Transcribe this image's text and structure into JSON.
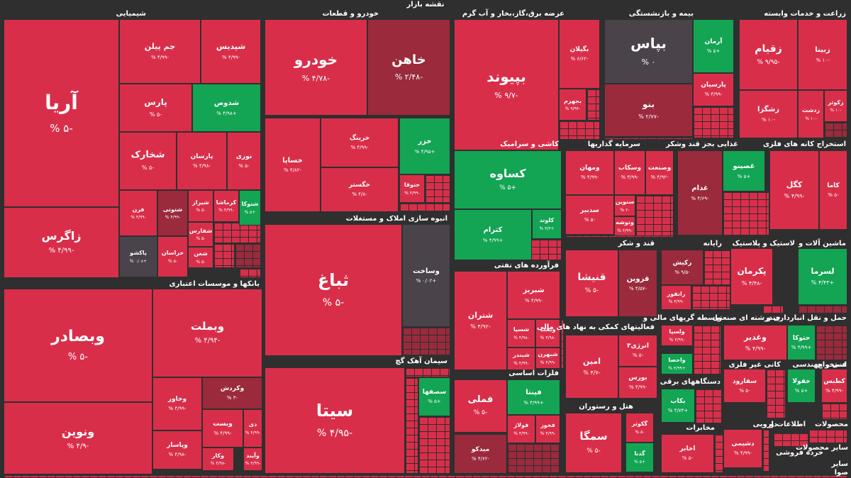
{
  "title": "نقشه بازار",
  "colors": {
    "neg": "#d92e4a",
    "negDark": "#9a2a3c",
    "neutral": "#4a434a",
    "pos": "#13a454"
  },
  "sectors": [
    {
      "name": "شیمیایی"
    },
    {
      "name": "خودرو و قطعات"
    },
    {
      "name": "عرضه برق،گاز،بخار و آب گرم"
    },
    {
      "name": "بیمه و بازنشستگی"
    },
    {
      "name": "زراعت و خدمات وابسته"
    },
    {
      "name": "بانکها و موسسات اعتباری"
    },
    {
      "name": "انبوه سازی املاک و مستغلات"
    },
    {
      "name": "کاشی و سرامیک"
    },
    {
      "name": "سرمایه گذاریها"
    },
    {
      "name": "غذایی بجز قند وشکر"
    },
    {
      "name": "استخراج کانه های فلزی"
    },
    {
      "name": "فرآورده های نفتی"
    },
    {
      "name": "قند و شکر"
    },
    {
      "name": "رایانه"
    },
    {
      "name": "لاستیک و پلاستیک"
    },
    {
      "name": "ماشین آلات و"
    },
    {
      "name": "فعالیتهای کمکی به نهاد های مالی"
    },
    {
      "name": "واسطه گریهای مالی و"
    },
    {
      "name": "چندرشته ای صنعتی"
    },
    {
      "name": "حمل و نقل انبارداری و"
    },
    {
      "name": "سیمان آهک گچ"
    },
    {
      "name": "فلزات اساسی"
    },
    {
      "name": "دستگاههای برقی"
    },
    {
      "name": "کانی غیر فلزی"
    },
    {
      "name": "فنی و مهندسی"
    },
    {
      "name": "استخراج"
    },
    {
      "name": "هتل و رستوران"
    },
    {
      "name": "مخابرات"
    },
    {
      "name": "دارویی"
    },
    {
      "name": "اطلاعات و"
    },
    {
      "name": "محصولات"
    },
    {
      "name": "خرده فروشی"
    },
    {
      "name": "سایر محصولات"
    },
    {
      "name": "سایر"
    },
    {
      "name": "صوا"
    }
  ],
  "chart_data": {
    "type": "heatmap",
    "title": "نقشه بازار",
    "tiles": [
      {
        "sym": "آریا",
        "chg": "-۵ %"
      },
      {
        "sym": "زاگرس",
        "chg": "-۴/۹۹ %"
      },
      {
        "sym": "جم پیلن",
        "chg": "-۴/۹۹ %"
      },
      {
        "sym": "شپدیس",
        "chg": "-۴/۹۹ %"
      },
      {
        "sym": "پارس",
        "chg": "-۵ %"
      },
      {
        "sym": "شدوص",
        "chg": "+۴/۹۸ %"
      },
      {
        "sym": "شخارک",
        "chg": "-۵ %"
      },
      {
        "sym": "پارسان",
        "chg": "-۴/۹۸ %"
      },
      {
        "sym": "نوری",
        "chg": "-۵ %"
      },
      {
        "sym": "فرن",
        "chg": "-۴/۹۹ %"
      },
      {
        "sym": "شتوتی",
        "chg": "-۴/۹۹ %"
      },
      {
        "sym": "شیراز",
        "chg": "-۵ %"
      },
      {
        "sym": "کرماشا",
        "chg": "-۴/۹۹ %"
      },
      {
        "sym": "شتوکا",
        "chg": "+۵ %"
      },
      {
        "sym": "شفارس",
        "chg": "-۵ %"
      },
      {
        "sym": "پاکشو",
        "chg": "+۰/۰۸ %"
      },
      {
        "sym": "خراسان",
        "chg": "-۵ %"
      },
      {
        "sym": "شغن",
        "chg": "-۵ %"
      },
      {
        "sym": "خودرو",
        "chg": "-۴/۷۸ %"
      },
      {
        "sym": "خاهن",
        "chg": "-۲/۴۸ %"
      },
      {
        "sym": "خرینگ",
        "chg": "-۴/۹۹ %"
      },
      {
        "sym": "خساپا",
        "chg": "-۴/۸۲ %"
      },
      {
        "sym": "خزر",
        "chg": "+۴/۹۵ %"
      },
      {
        "sym": "خگستر",
        "chg": "-۴/۸ %"
      },
      {
        "sym": "ختوقا",
        "chg": "-۴/۹۹ %"
      },
      {
        "sym": "بپیوند",
        "chg": "-۹/۷ %"
      },
      {
        "sym": "بگیلان",
        "chg": "-۶/۶۲ %"
      },
      {
        "sym": "بجهرم",
        "chg": "-۹/۹۴ %"
      },
      {
        "sym": "بپاس",
        "chg": "۰ %"
      },
      {
        "sym": "آرمان",
        "chg": "+۵ %"
      },
      {
        "sym": "پارسیان",
        "chg": "-۴/۹۹ %"
      },
      {
        "sym": "بنو",
        "chg": "-۲/۷۷ %"
      },
      {
        "sym": "زقیام",
        "chg": "-۹/۹۵ %"
      },
      {
        "sym": "زبینا",
        "chg": "-۱۰ %"
      },
      {
        "sym": "زشگزا",
        "chg": "-۱۰ %"
      },
      {
        "sym": "زدشت",
        "chg": "-۱۰ %"
      },
      {
        "sym": "زکوثر",
        "chg": "-۱۰ %"
      },
      {
        "sym": "وبصادر",
        "chg": "-۵ %"
      },
      {
        "sym": "ونوین",
        "chg": "-۴/۹ %"
      },
      {
        "sym": "وبملت",
        "chg": "-۴/۹۴ %"
      },
      {
        "sym": "وخاور",
        "chg": "-۴/۹۹ %"
      },
      {
        "sym": "وکردش",
        "chg": "-۳ %"
      },
      {
        "sym": "ویست",
        "chg": "-۴/۹۹ %"
      },
      {
        "sym": "دی",
        "chg": "-۴/۹۹ %"
      },
      {
        "sym": "وپاسار",
        "chg": "-۴/۹۸ %"
      },
      {
        "sym": "وکار",
        "chg": "-۴/۹۸ %"
      },
      {
        "sym": "وآیند",
        "chg": "-۴/۹۹ %"
      },
      {
        "sym": "ثباغ",
        "chg": "-۵ %"
      },
      {
        "sym": "وساخت",
        "chg": "+۰/۰۲ %"
      },
      {
        "sym": "کساوه",
        "chg": "+۵ %"
      },
      {
        "sym": "کترام",
        "chg": "+۴/۹۹ %"
      },
      {
        "sym": "کلوند",
        "chg": "+۴/۳ %"
      },
      {
        "sym": "ومهان",
        "chg": "-۴/۹۹ %"
      },
      {
        "sym": "وسکاب",
        "chg": "-۴/۹۹ %"
      },
      {
        "sym": "وصنعت",
        "chg": "-۴/۹۲ %"
      },
      {
        "sym": "سنوین",
        "chg": "-۲ %"
      },
      {
        "sym": "سدبیر",
        "chg": "-۵ %"
      },
      {
        "sym": "وتوشه",
        "chg": "-۴/۹۹ %"
      },
      {
        "sym": "غصینو",
        "chg": "+۵ %"
      },
      {
        "sym": "غدام",
        "chg": "-۴/۶۹ %"
      },
      {
        "sym": "کگل",
        "chg": "-۴/۹۹ %"
      },
      {
        "sym": "کاما",
        "chg": "-۵ %"
      },
      {
        "sym": "شتران",
        "chg": "-۴/۹۲ %"
      },
      {
        "sym": "شبریز",
        "chg": "-۴/۹۹ %"
      },
      {
        "sym": "شسپا",
        "chg": "-۴/۹۸ %"
      },
      {
        "sym": "ونفت",
        "chg": "-۴/۹۸ %"
      },
      {
        "sym": "شبندر",
        "chg": "-۴/۹۹ %"
      },
      {
        "sym": "شبهرن",
        "chg": "-۴/۹۹ %"
      },
      {
        "sym": "قنیشا",
        "chg": "-۵ %"
      },
      {
        "sym": "قزوین",
        "chg": "-۴/۵۷ %"
      },
      {
        "sym": "رکیش",
        "chg": "-۹/۵ %"
      },
      {
        "sym": "رانفور",
        "chg": "-۴/۹۹ %"
      },
      {
        "sym": "پکرمان",
        "chg": "-۴/۴۸ %"
      },
      {
        "sym": "لسرما",
        "chg": "+۴/۴۳ %"
      },
      {
        "sym": "امین",
        "chg": "-۴/۷ %"
      },
      {
        "sym": "انرژی۳",
        "chg": "-۵ %"
      },
      {
        "sym": "بورس",
        "chg": "-۴/۹۹ %"
      },
      {
        "sym": "ولسپا",
        "chg": "-۴/۹۹ %"
      },
      {
        "sym": "واحصا",
        "chg": "+۴/۹۹ %"
      },
      {
        "sym": "وغدیر",
        "chg": "-۴/۹۹ %"
      },
      {
        "sym": "حتوکا",
        "chg": "+۴/۹۹ %"
      },
      {
        "sym": "سیتا",
        "chg": "-۴/۹۵ %"
      },
      {
        "sym": "سصفها",
        "chg": "+۵ %"
      },
      {
        "sym": "فملی",
        "chg": "-۵ %"
      },
      {
        "sym": "فپنتا",
        "chg": "+۴/۹۹ %"
      },
      {
        "sym": "فولاژ",
        "chg": "-۴/۹۹ %"
      },
      {
        "sym": "فخوز",
        "chg": "-۴/۹۹ %"
      },
      {
        "sym": "میدکو",
        "chg": "-۴/۶۲ %"
      },
      {
        "sym": "بکاب",
        "chg": "+۴/۷۳ %"
      },
      {
        "sym": "سفارود",
        "chg": "-۵ %"
      },
      {
        "sym": "خفولا",
        "chg": "+۵ %"
      },
      {
        "sym": "کطبس",
        "chg": "-۴/۹۹ %"
      },
      {
        "sym": "سمگا",
        "chg": "-۵ %"
      },
      {
        "sym": "گکوثر",
        "chg": "-۵ %"
      },
      {
        "sym": "گدنا",
        "chg": "+۵ %"
      },
      {
        "sym": "اخابر",
        "chg": "-۵ %"
      },
      {
        "sym": "دشیمی",
        "chg": "-۴/۹۹ %"
      }
    ]
  }
}
